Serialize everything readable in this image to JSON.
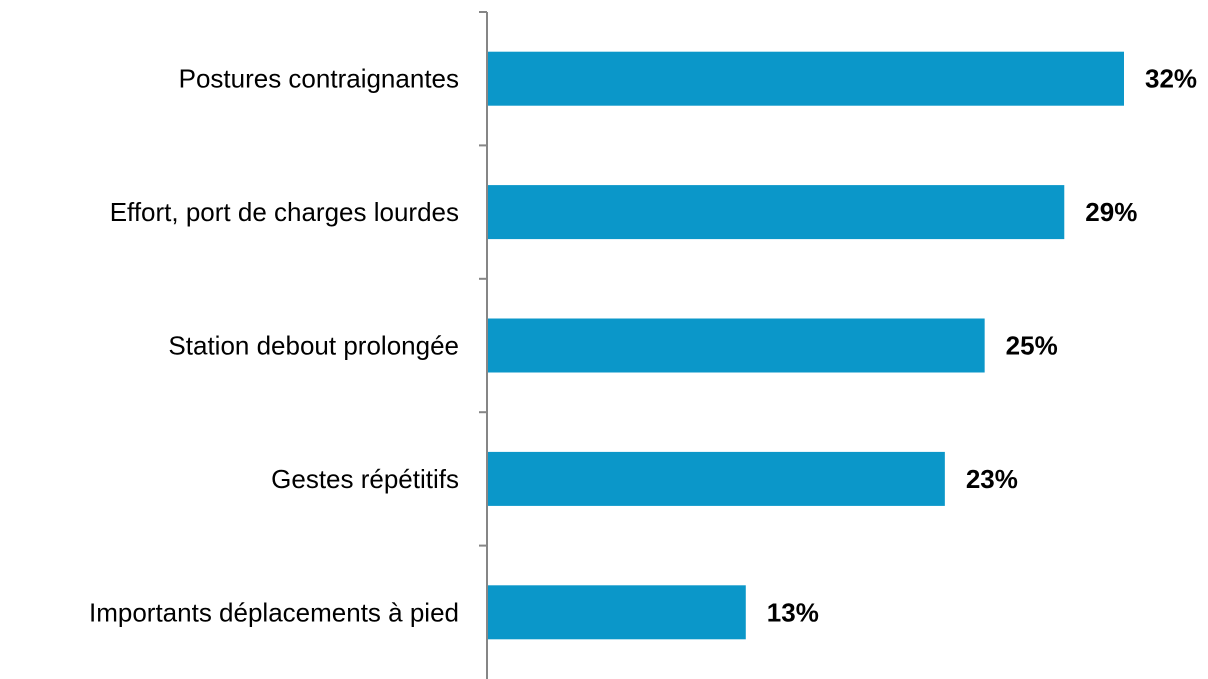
{
  "chart_data": {
    "type": "bar",
    "orientation": "horizontal",
    "categories": [
      "Postures contraignantes",
      "Effort, port de charges lourdes",
      "Station debout prolongée",
      "Gestes répétitifs",
      "Importants déplacements à pied"
    ],
    "values": [
      32,
      29,
      25,
      23,
      13
    ],
    "value_labels": [
      "32%",
      "29%",
      "25%",
      "23%",
      "13%"
    ],
    "unit": "%",
    "xlim": [
      0,
      35
    ],
    "grid": false,
    "legend": "none",
    "title": "",
    "xlabel": "",
    "ylabel": "",
    "bar_color": "#0B97C9"
  }
}
